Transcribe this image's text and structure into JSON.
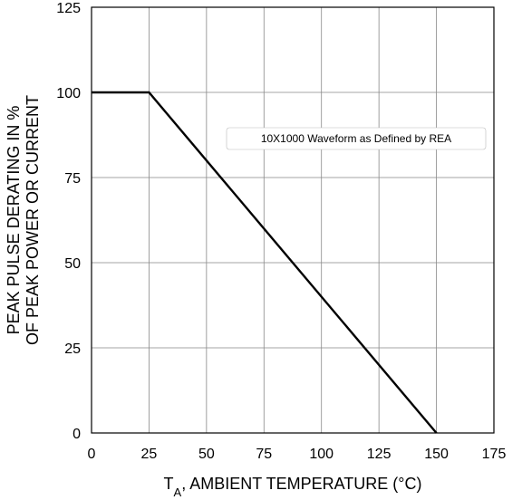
{
  "chart_data": {
    "type": "line",
    "title": "",
    "xlabel": "T_A, AMBIENT TEMPERATURE (°C)",
    "xlabel_main": "T",
    "xlabel_subscript": "A",
    "xlabel_rest": ", AMBIENT TEMPERATURE (°C)",
    "ylabel_line1": "PEAK PULSE DERATING IN %",
    "ylabel_line2": "OF PEAK POWER OR CURRENT",
    "xlim": [
      0,
      175
    ],
    "ylim": [
      0,
      125
    ],
    "x_ticks": [
      0,
      25,
      50,
      75,
      100,
      125,
      150,
      175
    ],
    "y_ticks": [
      0,
      25,
      50,
      75,
      100,
      125
    ],
    "grid": true,
    "series": [
      {
        "x": [
          0,
          25,
          150
        ],
        "y": [
          100,
          100,
          0
        ]
      }
    ],
    "annotation": "10X1000 Waveform as Defined by REA"
  }
}
